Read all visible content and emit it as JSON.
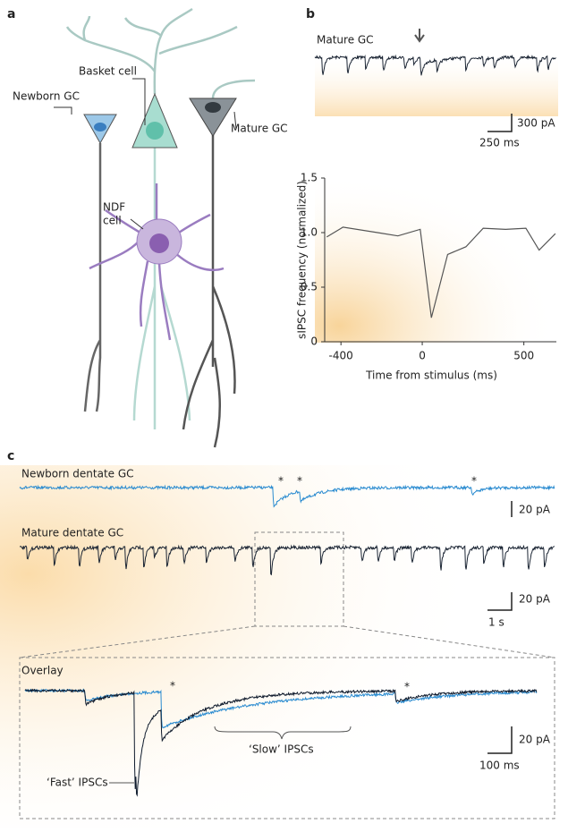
{
  "panel_a": {
    "label": "a",
    "basket": "Basket cell",
    "newborn": "Newborn GC",
    "mature": "Mature GC",
    "ndf": [
      "NDF",
      "cell"
    ]
  },
  "panel_b": {
    "label": "b",
    "trace_label": "Mature GC",
    "scale_y": "300 pA",
    "scale_x": "250 ms"
  },
  "chart_data": {
    "type": "line",
    "x_label": "Time from stimulus (ms)",
    "y_label": "sIPSC frequency (normalized)",
    "x": [
      -470,
      -390,
      -220,
      -120,
      -10,
      45,
      125,
      215,
      300,
      410,
      510,
      575,
      655
    ],
    "values": [
      0.96,
      1.05,
      1.0,
      0.97,
      1.03,
      0.22,
      0.8,
      0.87,
      1.04,
      1.03,
      1.04,
      0.84,
      0.99
    ],
    "color": "#555555",
    "xlim": [
      -480,
      660
    ],
    "ylim": [
      0,
      1.5
    ],
    "xticks": [
      -400,
      0,
      500
    ],
    "yticks": [
      0,
      {
        "value": 0.5,
        "label": "0.5"
      },
      {
        "value": 1,
        "label": "1.0"
      },
      {
        "value": 1.5,
        "label": "1.5"
      }
    ]
  },
  "panel_c": {
    "label": "c",
    "newborn": "Newborn dentate GC",
    "mature": "Mature dentate GC",
    "scale1_y": "20 pA",
    "scale2_y": "20 pA",
    "scale2_x": "1 s",
    "overlay": "Overlay",
    "slow": "‘Slow’ IPSCs",
    "fast": "‘Fast’ IPSCs",
    "scale3_y": "20 pA",
    "scale3_x": "100 ms",
    "asterisks": [
      "*",
      "*",
      "*",
      "*",
      "*"
    ]
  }
}
